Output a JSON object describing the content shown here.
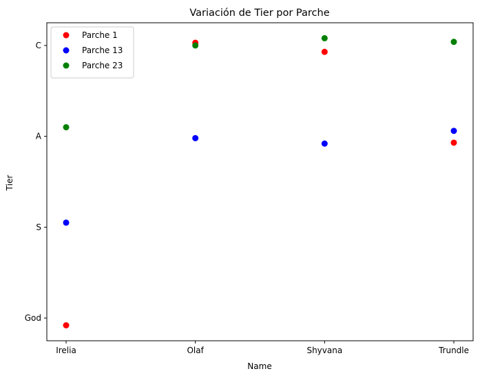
{
  "chart_data": {
    "type": "scatter",
    "title": "Variación de Tier por Parche",
    "xlabel": "Name",
    "ylabel": "Tier",
    "categories": [
      "Irelia",
      "Olaf",
      "Shyvana",
      "Trundle"
    ],
    "y_categories": [
      "God",
      "S",
      "A",
      "C"
    ],
    "ylim": [
      -0.25,
      3.25
    ],
    "grid": false,
    "legend_position": "top-left",
    "series": [
      {
        "name": "Parche 1",
        "color": "#ff0000",
        "values": [
          -0.08,
          3.03,
          2.93,
          1.93
        ]
      },
      {
        "name": "Parche 13",
        "color": "#0000ff",
        "values": [
          1.05,
          1.98,
          1.92,
          2.06
        ]
      },
      {
        "name": "Parche 23",
        "color": "#008000",
        "values": [
          2.1,
          3.0,
          3.08,
          3.04
        ]
      }
    ]
  }
}
